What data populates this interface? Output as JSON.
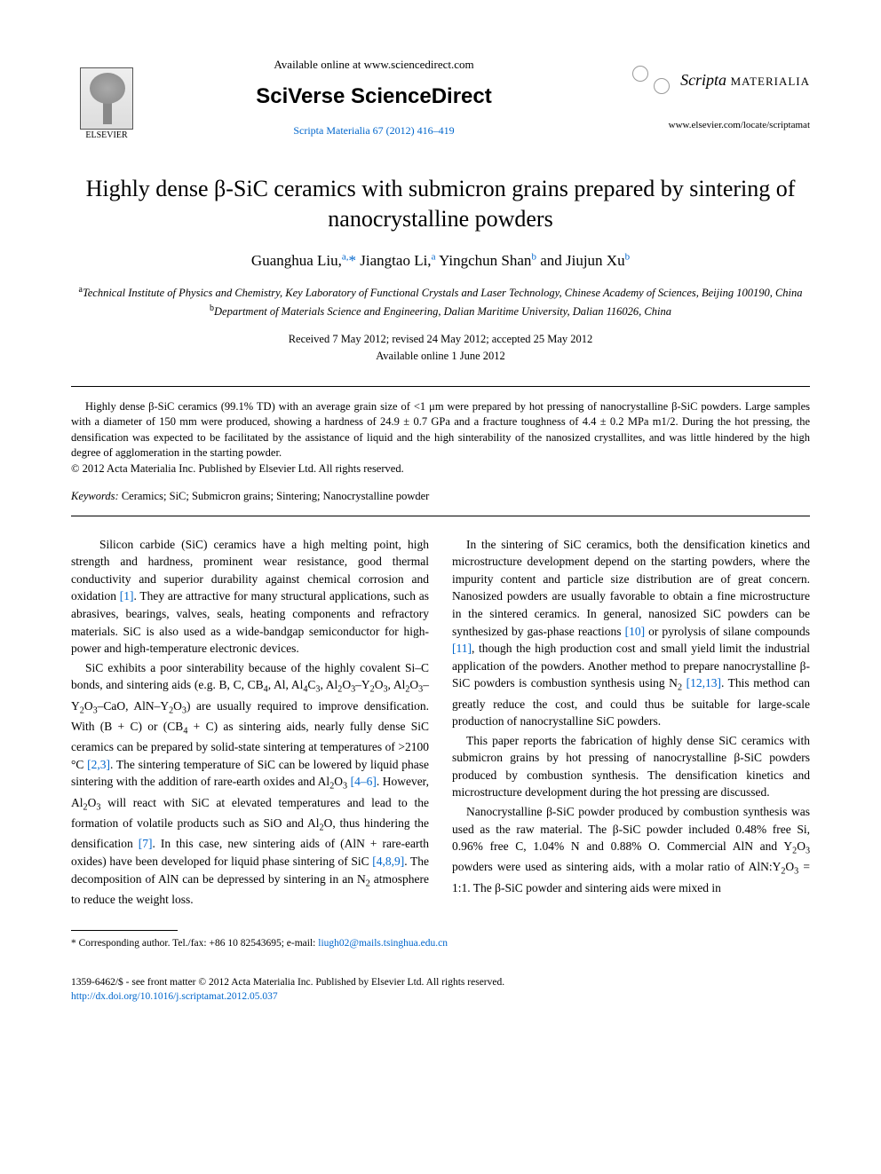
{
  "header": {
    "available_online": "Available online at www.sciencedirect.com",
    "sciverse": "SciVerse ScienceDirect",
    "journal_ref": "Scripta Materialia 67 (2012) 416–419",
    "elsevier_label": "ELSEVIER",
    "scripta_brand_italic": "Scripta",
    "scripta_brand_caps": "MATERIALIA",
    "scripta_url": "www.elsevier.com/locate/scriptamat"
  },
  "title": "Highly dense β-SiC ceramics with submicron grains prepared by sintering of nanocrystalline powders",
  "authors": {
    "a1_name": "Guanghua Liu,",
    "a1_sup": "a,",
    "a1_star": "*",
    "a2_name": " Jiangtao Li,",
    "a2_sup": "a",
    "a3_name": " Yingchun Shan",
    "a3_sup": "b",
    "a4_name": " and Jiujun Xu",
    "a4_sup": "b"
  },
  "affiliations": {
    "a_sup": "a",
    "a_text": "Technical Institute of Physics and Chemistry, Key Laboratory of Functional Crystals and Laser Technology, Chinese Academy of Sciences, Beijing 100190, China",
    "b_sup": "b",
    "b_text": "Department of Materials Science and Engineering, Dalian Maritime University, Dalian 116026, China"
  },
  "dates": {
    "received": "Received 7 May 2012; revised 24 May 2012; accepted 25 May 2012",
    "online": "Available online 1 June 2012"
  },
  "abstract": {
    "text": "Highly dense β-SiC ceramics (99.1% TD) with an average grain size of <1 μm were prepared by hot pressing of nanocrystalline β-SiC powders. Large samples with a diameter of 150 mm were produced, showing a hardness of 24.9 ± 0.7 GPa and a fracture toughness of 4.4 ± 0.2 MPa m1/2. During the hot pressing, the densification was expected to be facilitated by the assistance of liquid and the high sinterability of the nanosized crystallites, and was little hindered by the high degree of agglomeration in the starting powder.",
    "copyright": "© 2012 Acta Materialia Inc. Published by Elsevier Ltd. All rights reserved."
  },
  "keywords": {
    "label": "Keywords:",
    "text": " Ceramics; SiC; Submicron grains; Sintering; Nanocrystalline powder"
  },
  "body": {
    "p1a": "Silicon carbide (SiC) ceramics have a high melting point, high strength and hardness, prominent wear resistance, good thermal conductivity and superior durability against chemical corrosion and oxidation ",
    "p1_ref1": "[1]",
    "p1b": ". They are attractive for many structural applications, such as abrasives, bearings, valves, seals, heating components and refractory materials. SiC is also used as a wide-bandgap semiconductor for high-power and high-temperature electronic devices.",
    "p2a": "SiC exhibits a poor sinterability because of the highly covalent Si–C bonds, and sintering aids (e.g. B, C, CB",
    "p2_sub1": "4",
    "p2b": ", Al, Al",
    "p2_sub2": "4",
    "p2c": "C",
    "p2_sub3": "3",
    "p2d": ", Al",
    "p2_sub4": "2",
    "p2e": "O",
    "p2_sub5": "3",
    "p2f": "–Y",
    "p2_sub6": "2",
    "p2g": "O",
    "p2_sub7": "3",
    "p2h": ", Al",
    "p2_sub8": "2",
    "p2i": "O",
    "p2_sub9": "3",
    "p2j": "–Y",
    "p2_sub10": "2",
    "p2k": "O",
    "p2_sub11": "3",
    "p2l": "–CaO, AlN–Y",
    "p2_sub12": "2",
    "p2m": "O",
    "p2_sub13": "3",
    "p2n": ") are usually required to improve densification. With (B + C) or (CB",
    "p2_sub14": "4",
    "p2o": " + C) as sintering aids, nearly fully dense SiC ceramics can be prepared by solid-state sintering at temperatures of >2100 °C ",
    "p2_ref1": "[2,3]",
    "p2p": ". The sintering temperature of SiC can be lowered by liquid phase sintering with the addition of rare-earth oxides and Al",
    "p2_sub15": "2",
    "p2q": "O",
    "p2_sub16": "3",
    "p2r": " ",
    "p2_ref2": "[4–6]",
    "p2s": ". However, Al",
    "p2_sub17": "2",
    "p2t": "O",
    "p2_sub18": "3",
    "p2u": " will react with SiC at elevated temperatures and lead to the formation of volatile products such as SiO and Al",
    "p2_sub19": "2",
    "p2v": "O, thus hindering the densification ",
    "p2_ref3": "[7]",
    "p2w": ". In this case, new sintering aids of (AlN + rare-earth oxides) have been developed for liquid phase sintering of SiC ",
    "p2_ref4": "[4,8,9]",
    "p2x": ". The decomposition of AlN can be depressed by sintering in an N",
    "p2_sub20": "2",
    "p2y": " atmosphere to reduce the weight loss.",
    "p3a": "In the sintering of SiC ceramics, both the densification kinetics and microstructure development depend on the starting powders, where the impurity content and particle size distribution are of great concern. Nanosized powders are usually favorable to obtain a fine microstructure in the sintered ceramics. In general, nanosized SiC powders can be synthesized by gas-phase reactions ",
    "p3_ref1": "[10]",
    "p3b": " or pyrolysis of silane compounds ",
    "p3_ref2": "[11]",
    "p3c": ", though the high production cost and small yield limit the industrial application of the powders. Another method to prepare nanocrystalline β-SiC powders is combustion synthesis using N",
    "p3_sub1": "2",
    "p3d": " ",
    "p3_ref3": "[12,13]",
    "p3e": ". This method can greatly reduce the cost, and could thus be suitable for large-scale production of nanocrystalline SiC powders.",
    "p4": "This paper reports the fabrication of highly dense SiC ceramics with submicron grains by hot pressing of nanocrystalline β-SiC powders produced by combustion synthesis. The densification kinetics and microstructure development during the hot pressing are discussed.",
    "p5a": "Nanocrystalline β-SiC powder produced by combustion synthesis was used as the raw material. The β-SiC powder included 0.48% free Si, 0.96% free C, 1.04% N and 0.88% O. Commercial AlN and Y",
    "p5_sub1": "2",
    "p5b": "O",
    "p5_sub2": "3",
    "p5c": " powders were used as sintering aids, with a molar ratio of AlN:Y",
    "p5_sub3": "2",
    "p5d": "O",
    "p5_sub4": "3",
    "p5e": " = 1:1. The β-SiC powder and sintering aids were mixed in"
  },
  "footnote": {
    "label": "* Corresponding author.  Tel./fax:  +86  10  82543695; e-mail:",
    "email": "liugh02@mails.tsinghua.edu.cn"
  },
  "footer": {
    "line1": "1359-6462/$ - see front matter © 2012 Acta Materialia Inc. Published by Elsevier Ltd. All rights reserved.",
    "doi": "http://dx.doi.org/10.1016/j.scriptamat.2012.05.037"
  }
}
